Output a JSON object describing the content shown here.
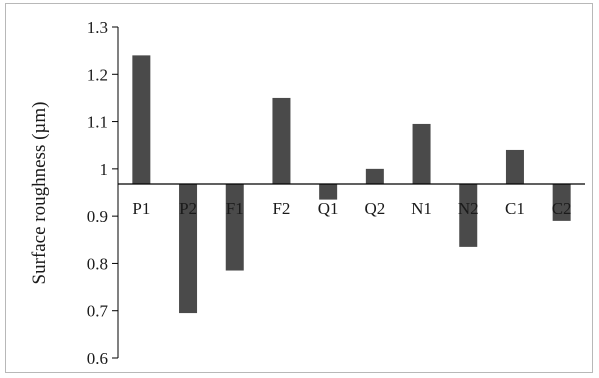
{
  "chart_data": {
    "type": "bar",
    "title": "",
    "xlabel": "",
    "ylabel": "Surface roughness (µm)",
    "categories": [
      "P1",
      "P2",
      "F1",
      "F2",
      "Q1",
      "Q2",
      "N1",
      "N2",
      "C1",
      "C2"
    ],
    "values": [
      1.24,
      0.695,
      0.785,
      1.15,
      0.935,
      1.0,
      1.095,
      0.835,
      1.04,
      0.89
    ],
    "baseline": 0.968,
    "ylim": [
      0.6,
      1.3
    ],
    "yticks": [
      "0.6",
      "0.7",
      "0.8",
      "0.9",
      "1",
      "1.1",
      "1.2",
      "1.3"
    ],
    "grid": false,
    "legend": "none",
    "bar_color": "#4a4a4a",
    "axis_color": "#000000"
  }
}
